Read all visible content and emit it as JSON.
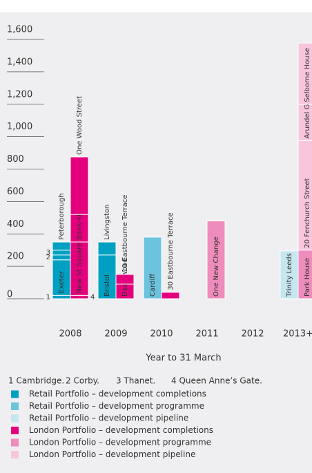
{
  "chart_data": {
    "type": "bar",
    "categories": [
      "2008",
      "2009",
      "2010",
      "2011",
      "2012",
      "2013+"
    ],
    "ylim": [
      0,
      1600
    ],
    "yticks": [
      0,
      200,
      400,
      600,
      800,
      {
        "value": 1000,
        "label": "1,000"
      },
      {
        "value": 1200,
        "label": "1,200"
      },
      {
        "value": 1400,
        "label": "1,400"
      },
      {
        "value": 1600,
        "label": "1,600"
      }
    ],
    "x_label": "Year to 31 March",
    "notes": [
      "1 Cambridge.",
      "2 Corby.",
      "3 Thanet.",
      "4 Queen Anne’s Gate."
    ],
    "stacks": [
      {
        "series": [
          {
            "name": "Retail Portfolio – development completions",
            "color": "#00a0c2",
            "values": [
              [
                {
                  "label": "1",
                  "value": 20
                },
                {
                  "label": "Exeter",
                  "value": 220
                },
                {
                  "label": "2",
                  "value": 30
                },
                {
                  "label": "3",
                  "value": 30
                },
                {
                  "label": "Peterborough",
                  "value": 50
                }
              ],
              [
                {
                  "label": "Bristol",
                  "value": 270
                },
                {
                  "label": "Livingston",
                  "value": 80
                }
              ],
              [],
              [],
              [],
              []
            ]
          },
          {
            "name": "Retail Portfolio – development programme",
            "color": "#6cc3dc",
            "values": [
              [],
              [],
              [
                {
                  "label": "Cardiff",
                  "value": 380
                }
              ],
              [],
              [],
              []
            ]
          },
          {
            "name": "Retail Portfolio – development pipeline",
            "color": "#c6e6f0",
            "values": [
              [],
              [],
              [],
              [],
              [],
              [
                {
                  "label": "Trinity Leeds",
                  "value": 295
                }
              ]
            ]
          }
        ]
      },
      {
        "series": [
          {
            "name": "London Portfolio – development completions",
            "color": "#e4007d",
            "values": [
              [
                {
                  "label": "4",
                  "value": 20
                },
                {
                  "label": "New St Square",
                  "value": 330
                },
                {
                  "label": "Bank-side",
                  "value": 170
                },
                {
                  "label": "One Wood Street",
                  "value": 355
                }
              ],
              [
                {
                  "label": "Dash-wood",
                  "value": 90
                },
                {
                  "label": "10 Eastbourne Terrace",
                  "value": 60
                }
              ],
              [
                {
                  "label": "30 Eastbourne Terrace",
                  "value": 40
                }
              ],
              [],
              [],
              []
            ]
          },
          {
            "name": "London Portfolio – development programme",
            "color": "#ee8cbc",
            "values": [
              [],
              [],
              [],
              [
                {
                  "label": "One New Change",
                  "value": 480
                }
              ],
              [],
              [
                {
                  "label": "Park House",
                  "value": 300
                }
              ]
            ]
          },
          {
            "name": "London Portfolio – development pipeline",
            "color": "#f8c6dc",
            "values": [
              [],
              [],
              [],
              [],
              [],
              [
                {
                  "label": "20 Fenchurch Street",
                  "value": 675
                },
                {
                  "label": "Arundel Great Court",
                  "value": 225
                },
                {
                  "label": "Selborne House",
                  "value": 378
                }
              ]
            ]
          }
        ]
      }
    ]
  }
}
